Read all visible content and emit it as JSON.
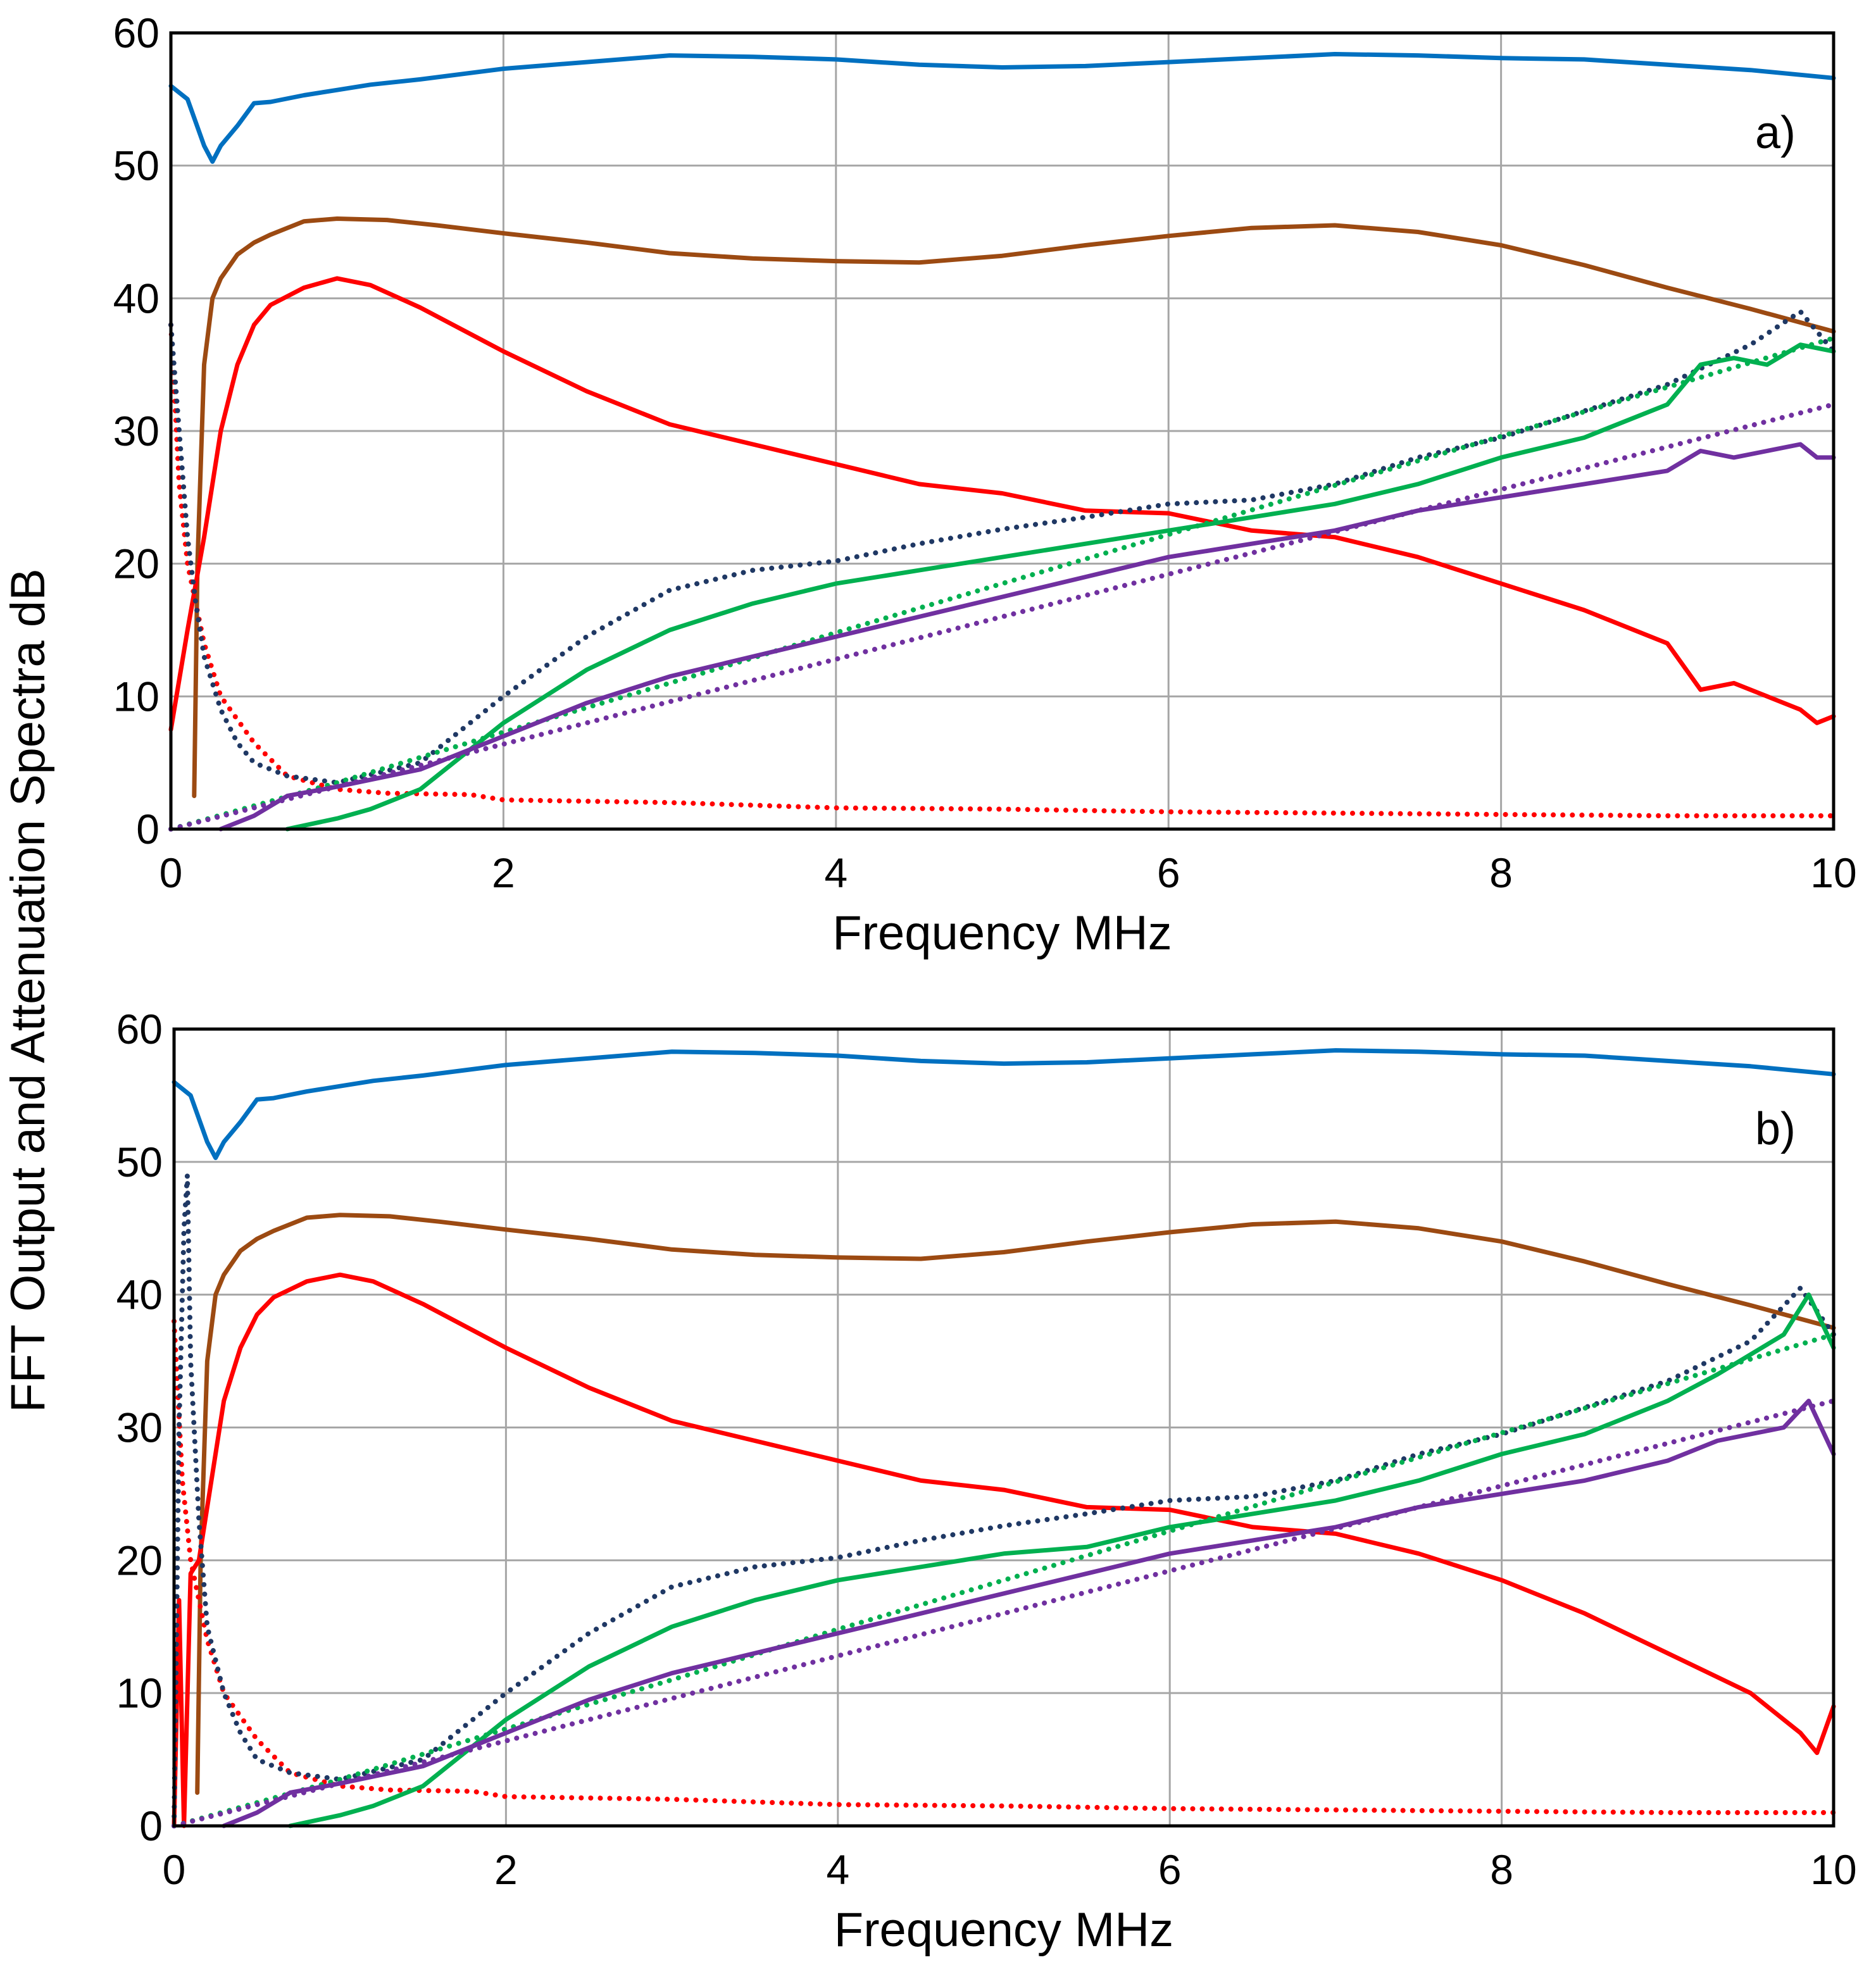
{
  "chart_data": [
    {
      "type": "line",
      "panel_label": "a)",
      "title": "",
      "xlabel": "Frequency  MHz",
      "ylabel": "FFT Output and Attenuation Spectra  dB",
      "xlim": [
        0,
        10
      ],
      "ylim": [
        0,
        60
      ],
      "xticks": [
        "0",
        "2",
        "4",
        "6",
        "8",
        "10"
      ],
      "yticks": [
        "0",
        "10",
        "20",
        "30",
        "40",
        "50",
        "60"
      ],
      "grid": true,
      "legend": "none",
      "series": [
        {
          "name": "blue solid",
          "color": "#0070c0",
          "dash": "solid",
          "x": [
            0,
            0.1,
            0.2,
            0.25,
            0.3,
            0.4,
            0.5,
            0.6,
            0.8,
            1,
            1.2,
            1.5,
            2,
            2.5,
            3,
            3.5,
            4,
            4.5,
            5,
            5.5,
            6,
            6.5,
            7,
            7.5,
            8,
            8.5,
            9,
            9.5,
            10
          ],
          "y": [
            56,
            55,
            51.5,
            50.3,
            51.5,
            53,
            54.7,
            54.8,
            55.3,
            55.7,
            56.1,
            56.5,
            57.3,
            57.8,
            58.3,
            58.2,
            58,
            57.6,
            57.4,
            57.5,
            57.8,
            58.1,
            58.4,
            58.3,
            58.1,
            58,
            57.6,
            57.2,
            56.6
          ]
        },
        {
          "name": "brown solid",
          "color": "#9c4a12",
          "dash": "solid",
          "x": [
            0.14,
            0.16,
            0.2,
            0.25,
            0.3,
            0.4,
            0.5,
            0.6,
            0.8,
            1,
            1.3,
            1.6,
            2,
            2.5,
            3,
            3.5,
            4,
            4.5,
            5,
            5.5,
            6,
            6.5,
            7,
            7.5,
            8,
            8.5,
            9,
            9.5,
            10
          ],
          "y": [
            2.5,
            20,
            35,
            40,
            41.5,
            43.3,
            44.2,
            44.8,
            45.8,
            46,
            45.9,
            45.5,
            44.9,
            44.2,
            43.4,
            43,
            42.8,
            42.7,
            43.2,
            44,
            44.7,
            45.3,
            45.5,
            45,
            44,
            42.5,
            40.8,
            39.2,
            37.5
          ]
        },
        {
          "name": "red solid",
          "color": "#ff0000",
          "dash": "solid",
          "x": [
            0,
            0.1,
            0.2,
            0.3,
            0.4,
            0.5,
            0.6,
            0.8,
            1,
            1.2,
            1.5,
            2,
            2.5,
            3,
            3.5,
            4,
            4.5,
            5,
            5.5,
            6,
            6.5,
            7,
            7.5,
            8,
            8.5,
            9,
            9.2,
            9.4,
            9.6,
            9.8,
            9.9,
            10
          ],
          "y": [
            7.5,
            15,
            22,
            30,
            35,
            38,
            39.5,
            40.8,
            41.5,
            41,
            39.3,
            36,
            33,
            30.5,
            29,
            27.5,
            26,
            25.3,
            24,
            23.8,
            22.5,
            22,
            20.5,
            18.5,
            16.5,
            14,
            10.5,
            11,
            10,
            9,
            8,
            8.5
          ]
        },
        {
          "name": "red dotted",
          "color": "#ff0000",
          "dash": "dotted",
          "x": [
            0,
            0.05,
            0.1,
            0.2,
            0.3,
            0.5,
            0.7,
            1,
            1.3,
            1.8,
            2,
            3,
            4,
            5,
            6,
            7,
            8,
            9,
            10
          ],
          "y": [
            38,
            26,
            20,
            14,
            10,
            6.5,
            4,
            3,
            2.7,
            2.6,
            2.2,
            2,
            1.6,
            1.5,
            1.3,
            1.2,
            1.1,
            1.0,
            1.0
          ]
        },
        {
          "name": "navy dotted",
          "color": "#1f3864",
          "dash": "dotted",
          "x": [
            0,
            0.05,
            0.1,
            0.15,
            0.2,
            0.3,
            0.4,
            0.5,
            0.7,
            1,
            1.5,
            2,
            2.5,
            3,
            3.5,
            4,
            4.5,
            5,
            5.5,
            6,
            6.5,
            7,
            7.5,
            8,
            8.5,
            9,
            9.5,
            9.8,
            10
          ],
          "y": [
            38,
            30,
            22,
            17,
            13,
            9,
            6.5,
            5,
            4,
            3.5,
            5,
            10,
            14.5,
            18,
            19.5,
            20.2,
            21.5,
            22.6,
            23.5,
            24.5,
            24.8,
            26,
            28,
            29.5,
            31.5,
            33.5,
            36.5,
            39,
            36
          ]
        },
        {
          "name": "green solid",
          "color": "#00b050",
          "dash": "solid",
          "x": [
            0.7,
            1,
            1.2,
            1.5,
            2,
            2.5,
            3,
            3.5,
            4,
            4.5,
            5,
            5.5,
            6,
            6.5,
            7,
            7.5,
            8,
            8.5,
            9,
            9.2,
            9.4,
            9.6,
            9.8,
            10
          ],
          "y": [
            0,
            0.8,
            1.5,
            3,
            8,
            12,
            15,
            17,
            18.5,
            19.5,
            20.5,
            21.5,
            22.5,
            23.5,
            24.5,
            26,
            28,
            29.5,
            32,
            35,
            35.5,
            35,
            36.5,
            36
          ]
        },
        {
          "name": "green dotted",
          "color": "#00b050",
          "dash": "dotted",
          "x": [
            0,
            1,
            2,
            3,
            4,
            5,
            6,
            7,
            8,
            9,
            10
          ],
          "y": [
            0,
            3.5,
            7.3,
            11,
            14.8,
            18.5,
            22.2,
            25.9,
            29.6,
            33.3,
            37
          ]
        },
        {
          "name": "purple solid",
          "color": "#7030a0",
          "dash": "solid",
          "x": [
            0.3,
            0.5,
            0.7,
            1,
            1.5,
            2,
            2.5,
            3,
            3.5,
            4,
            4.5,
            5,
            5.5,
            6,
            6.5,
            7,
            7.5,
            8,
            8.5,
            9,
            9.2,
            9.4,
            9.6,
            9.8,
            9.9,
            10
          ],
          "y": [
            0,
            1,
            2.5,
            3.2,
            4.5,
            7,
            9.5,
            11.5,
            13,
            14.5,
            16,
            17.5,
            19,
            20.5,
            21.5,
            22.5,
            24,
            25,
            26,
            27,
            28.5,
            28,
            28.5,
            29,
            28,
            28
          ]
        },
        {
          "name": "purple dotted",
          "color": "#7030a0",
          "dash": "dotted",
          "x": [
            0,
            1,
            2,
            3,
            4,
            5,
            6,
            7,
            8,
            9,
            10
          ],
          "y": [
            0,
            3.2,
            6.4,
            9.6,
            12.8,
            16,
            19.2,
            22.4,
            25.6,
            28.8,
            32
          ]
        }
      ]
    },
    {
      "type": "line",
      "panel_label": "b)",
      "title": "",
      "xlabel": "Frequency  MHz",
      "ylabel": "FFT Output and Attenuation Spectra  dB",
      "xlim": [
        0,
        10
      ],
      "ylim": [
        0,
        60
      ],
      "xticks": [
        "0",
        "2",
        "4",
        "6",
        "8",
        "10"
      ],
      "yticks": [
        "0",
        "10",
        "20",
        "30",
        "40",
        "50",
        "60"
      ],
      "grid": true,
      "legend": "none",
      "series": [
        {
          "name": "blue solid",
          "color": "#0070c0",
          "dash": "solid",
          "x": [
            0,
            0.1,
            0.2,
            0.25,
            0.3,
            0.4,
            0.5,
            0.6,
            0.8,
            1,
            1.2,
            1.5,
            2,
            2.5,
            3,
            3.5,
            4,
            4.5,
            5,
            5.5,
            6,
            6.5,
            7,
            7.5,
            8,
            8.5,
            9,
            9.5,
            10
          ],
          "y": [
            56,
            55,
            51.5,
            50.3,
            51.5,
            53,
            54.7,
            54.8,
            55.3,
            55.7,
            56.1,
            56.5,
            57.3,
            57.8,
            58.3,
            58.2,
            58,
            57.6,
            57.4,
            57.5,
            57.8,
            58.1,
            58.4,
            58.3,
            58.1,
            58,
            57.6,
            57.2,
            56.6
          ]
        },
        {
          "name": "brown solid",
          "color": "#9c4a12",
          "dash": "solid",
          "x": [
            0.14,
            0.16,
            0.2,
            0.25,
            0.3,
            0.4,
            0.5,
            0.6,
            0.8,
            1,
            1.3,
            1.6,
            2,
            2.5,
            3,
            3.5,
            4,
            4.5,
            5,
            5.5,
            6,
            6.5,
            7,
            7.5,
            8,
            8.5,
            9,
            9.5,
            10
          ],
          "y": [
            2.5,
            20,
            35,
            40,
            41.5,
            43.3,
            44.2,
            44.8,
            45.8,
            46,
            45.9,
            45.5,
            44.9,
            44.2,
            43.4,
            43,
            42.8,
            42.7,
            43.2,
            44,
            44.7,
            45.3,
            45.5,
            45,
            44,
            42.5,
            40.8,
            39.2,
            37.5
          ]
        },
        {
          "name": "red solid",
          "color": "#ff0000",
          "dash": "solid",
          "x": [
            0,
            0.03,
            0.06,
            0.1,
            0.15,
            0.2,
            0.3,
            0.4,
            0.5,
            0.6,
            0.8,
            1,
            1.2,
            1.5,
            2,
            2.5,
            3,
            3.5,
            4,
            4.5,
            5,
            5.5,
            6,
            6.5,
            7,
            7.5,
            8,
            8.5,
            9,
            9.5,
            9.7,
            9.8,
            9.9,
            10
          ],
          "y": [
            0,
            17,
            0,
            19,
            20,
            24,
            32,
            36,
            38.5,
            39.8,
            41,
            41.5,
            41,
            39.3,
            36,
            33,
            30.5,
            29,
            27.5,
            26,
            25.3,
            24,
            23.8,
            22.5,
            22,
            20.5,
            18.5,
            16,
            13,
            10,
            8,
            7,
            5.5,
            9
          ]
        },
        {
          "name": "red dotted",
          "color": "#ff0000",
          "dash": "dotted",
          "x": [
            0,
            0.05,
            0.1,
            0.2,
            0.3,
            0.5,
            0.7,
            1,
            1.3,
            1.8,
            2,
            3,
            4,
            5,
            6,
            7,
            8,
            9,
            10
          ],
          "y": [
            38,
            26,
            20,
            14,
            10,
            6.5,
            4,
            3,
            2.7,
            2.6,
            2.2,
            2,
            1.6,
            1.5,
            1.3,
            1.2,
            1.1,
            1.0,
            1.0
          ]
        },
        {
          "name": "navy dotted",
          "color": "#1f3864",
          "dash": "dotted",
          "x": [
            0,
            0.03,
            0.06,
            0.08,
            0.1,
            0.15,
            0.2,
            0.3,
            0.4,
            0.5,
            0.7,
            1,
            1.5,
            2,
            2.5,
            3,
            3.5,
            4,
            4.5,
            5,
            5.5,
            6,
            6.5,
            7,
            7.5,
            8,
            8.5,
            9,
            9.5,
            9.8,
            10
          ],
          "y": [
            0,
            30,
            45,
            49,
            35,
            23,
            15,
            10,
            7,
            5,
            4,
            3.5,
            5,
            10,
            14.5,
            18,
            19.5,
            20.2,
            21.5,
            22.6,
            23.5,
            24.5,
            24.8,
            26,
            28,
            29.5,
            31.5,
            33.5,
            36.5,
            40.5,
            37
          ]
        },
        {
          "name": "green solid",
          "color": "#00b050",
          "dash": "solid",
          "x": [
            0.7,
            1,
            1.2,
            1.5,
            2,
            2.5,
            3,
            3.5,
            4,
            4.5,
            5,
            5.5,
            6,
            6.5,
            7,
            7.5,
            8,
            8.5,
            9,
            9.3,
            9.5,
            9.7,
            9.85,
            10
          ],
          "y": [
            0,
            0.8,
            1.5,
            3,
            8,
            12,
            15,
            17,
            18.5,
            19.5,
            20.5,
            21,
            22.5,
            23.5,
            24.5,
            26,
            28,
            29.5,
            32,
            34,
            35.5,
            37,
            40,
            36
          ]
        },
        {
          "name": "green dotted",
          "color": "#00b050",
          "dash": "dotted",
          "x": [
            0,
            1,
            2,
            3,
            4,
            5,
            6,
            7,
            8,
            9,
            10
          ],
          "y": [
            0,
            3.5,
            7.3,
            11,
            14.8,
            18.5,
            22.2,
            25.9,
            29.6,
            33.3,
            37
          ]
        },
        {
          "name": "purple solid",
          "color": "#7030a0",
          "dash": "solid",
          "x": [
            0.3,
            0.5,
            0.7,
            1,
            1.5,
            2,
            2.5,
            3,
            3.5,
            4,
            4.5,
            5,
            5.5,
            6,
            6.5,
            7,
            7.5,
            8,
            8.5,
            9,
            9.3,
            9.5,
            9.7,
            9.85,
            10
          ],
          "y": [
            0,
            1,
            2.5,
            3.2,
            4.5,
            7,
            9.5,
            11.5,
            13,
            14.5,
            16,
            17.5,
            19,
            20.5,
            21.5,
            22.5,
            24,
            25,
            26,
            27.5,
            29,
            29.5,
            30,
            32,
            28
          ]
        },
        {
          "name": "purple dotted",
          "color": "#7030a0",
          "dash": "dotted",
          "x": [
            0,
            1,
            2,
            3,
            4,
            5,
            6,
            7,
            8,
            9,
            10
          ],
          "y": [
            0,
            3.2,
            6.4,
            9.6,
            12.8,
            16,
            19.2,
            22.4,
            25.6,
            28.8,
            32
          ]
        }
      ]
    }
  ]
}
